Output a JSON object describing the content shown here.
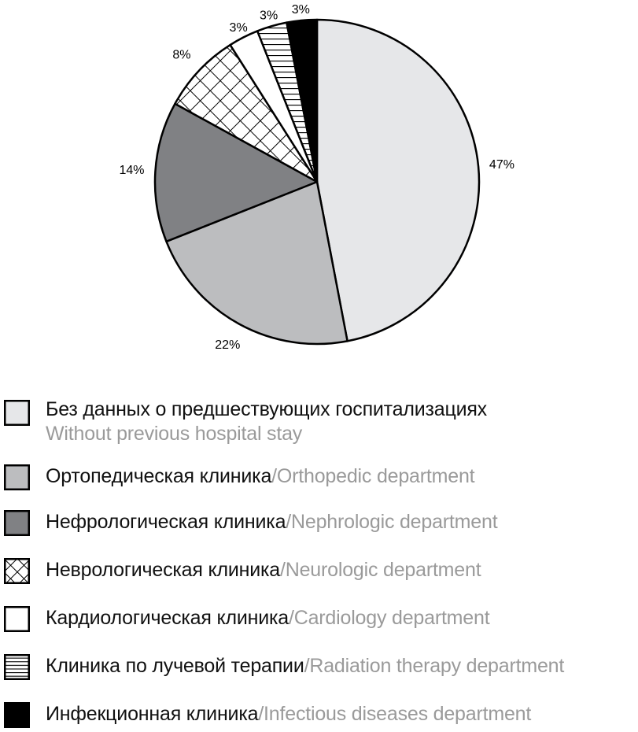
{
  "chart_data": {
    "type": "pie",
    "title": "",
    "start": "top",
    "direction": "clockwise",
    "slices": [
      {
        "label_ru": "Без данных о предшествующих госпитализациях",
        "label_en": "Without previous hospital stay",
        "value": 47,
        "value_label": "47%",
        "fill": "#e6e7e9",
        "pattern": "solid"
      },
      {
        "label_ru": "Ортопедическая клиника",
        "label_en": "Orthopedic department",
        "value": 22,
        "value_label": "22%",
        "fill": "#bcbdbf",
        "pattern": "solid"
      },
      {
        "label_ru": "Нефрологическая клиника",
        "label_en": "Nephrologic department",
        "value": 14,
        "value_label": "14%",
        "fill": "#808184",
        "pattern": "solid"
      },
      {
        "label_ru": "Неврологическая клиника",
        "label_en": "Neurologic department",
        "value": 8,
        "value_label": "8%",
        "fill": "#ffffff",
        "pattern": "crosshatch"
      },
      {
        "label_ru": "Кардиологическая клиника",
        "label_en": "Cardiology department",
        "value": 3,
        "value_label": "3%",
        "fill": "#ffffff",
        "pattern": "solid"
      },
      {
        "label_ru": "Клиника по лучевой терапии",
        "label_en": "Radiation therapy department",
        "value": 3,
        "value_label": "3%",
        "fill": "#ffffff",
        "pattern": "horizontal"
      },
      {
        "label_ru": "Инфекционная клиника",
        "label_en": "Infectious diseases department",
        "value": 3,
        "value_label": "3%",
        "fill": "#000000",
        "pattern": "solid"
      }
    ],
    "legend": "bottom"
  }
}
